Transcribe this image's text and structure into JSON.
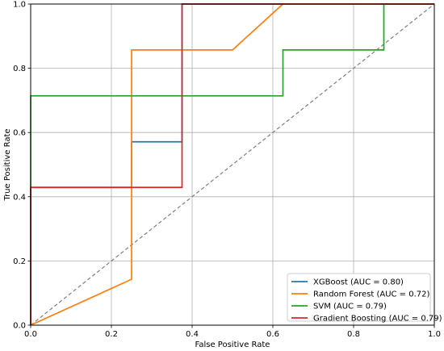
{
  "chart_data": {
    "type": "line",
    "title": "",
    "xlabel": "False Positive Rate",
    "ylabel": "True Positive Rate",
    "xlim": [
      0.0,
      1.0
    ],
    "ylim": [
      0.0,
      1.0
    ],
    "xticks": [
      "0.0",
      "0.2",
      "0.4",
      "0.6",
      "0.8",
      "1.0"
    ],
    "yticks": [
      "0.0",
      "0.2",
      "0.4",
      "0.6",
      "0.8",
      "1.0"
    ],
    "grid": true,
    "legend_position": "lower-right",
    "diagonal": {
      "x": [
        0,
        1
      ],
      "y": [
        0,
        1
      ],
      "color": "#7f7f7f",
      "style": "dashed"
    },
    "series": [
      {
        "name": "XGBoost (AUC = 0.80)",
        "color": "#1f77b4",
        "x": [
          0,
          0,
          0.25,
          0.25,
          0.375,
          0.375,
          1.0
        ],
        "y": [
          0,
          0.429,
          0.429,
          0.571,
          0.571,
          1.0,
          1.0
        ]
      },
      {
        "name": "Random Forest (AUC = 0.72)",
        "color": "#ff7f0e",
        "x": [
          0,
          0.25,
          0.25,
          0.5,
          0.625,
          1.0
        ],
        "y": [
          0,
          0.143,
          0.857,
          0.857,
          1.0,
          1.0
        ]
      },
      {
        "name": "SVM (AUC = 0.79)",
        "color": "#2ca02c",
        "x": [
          0,
          0,
          0.625,
          0.625,
          0.875,
          0.875,
          1.0
        ],
        "y": [
          0,
          0.714,
          0.714,
          0.857,
          0.857,
          1.0,
          1.0
        ]
      },
      {
        "name": "Gradient Boosting (AUC = 0.79)",
        "color": "#d62728",
        "x": [
          0,
          0,
          0.375,
          0.375,
          1.0
        ],
        "y": [
          0,
          0.429,
          0.429,
          1.0,
          1.0
        ]
      }
    ]
  }
}
